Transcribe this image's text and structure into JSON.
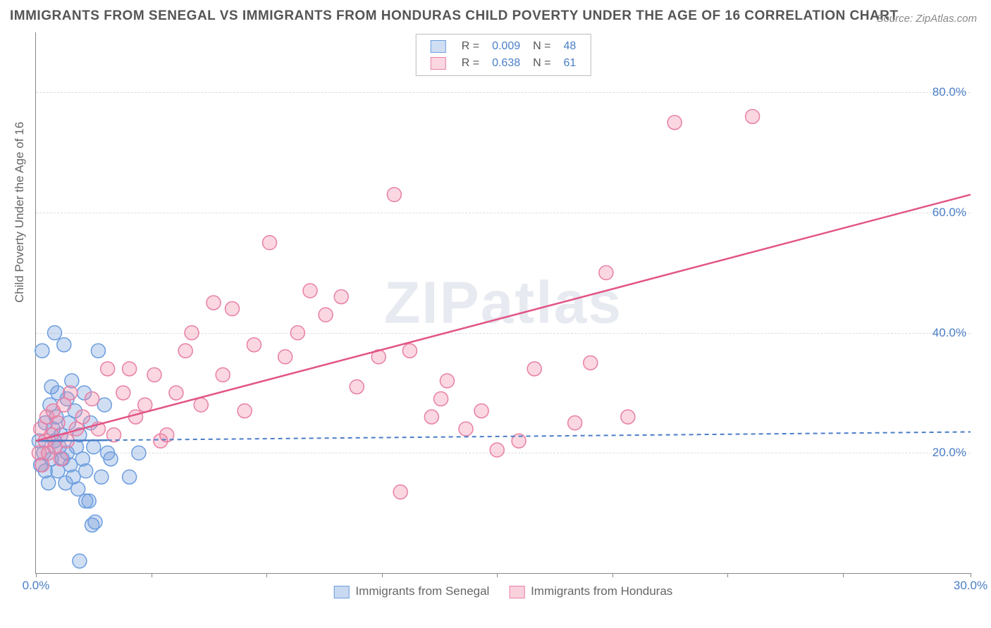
{
  "title": "IMMIGRANTS FROM SENEGAL VS IMMIGRANTS FROM HONDURAS CHILD POVERTY UNDER THE AGE OF 16 CORRELATION CHART",
  "source": "Source: ZipAtlas.com",
  "ylabel": "Child Poverty Under the Age of 16",
  "watermark": "ZIPatlas",
  "chart": {
    "type": "scatter",
    "xlim": [
      0,
      30
    ],
    "ylim": [
      0,
      90
    ],
    "ytick_positions": [
      20,
      40,
      60,
      80
    ],
    "ytick_labels": [
      "20.0%",
      "40.0%",
      "60.0%",
      "80.0%"
    ],
    "xtick_positions": [
      0,
      30
    ],
    "xtick_labels": [
      "0.0%",
      "30.0%"
    ],
    "xtick_marks": [
      0,
      3.7,
      7.4,
      11.1,
      14.8,
      18.5,
      22.2,
      25.9,
      30
    ],
    "background_color": "#ffffff",
    "grid_color": "#dddddd",
    "axis_color": "#888888",
    "tick_label_color": "#4a7ec7"
  },
  "series": [
    {
      "name": "Immigrants from Senegal",
      "fill": "rgba(120,160,220,0.35)",
      "stroke": "#6a9de0",
      "line_color": "#4a7ec7",
      "line_dash": "6,5",
      "R": "0.009",
      "N": "48",
      "trend": {
        "x1": 0,
        "y1": 22,
        "x2": 30,
        "y2": 23.5
      },
      "solid_until_x": 2.3,
      "marker_radius": 10,
      "points": [
        [
          0.1,
          22
        ],
        [
          0.15,
          18
        ],
        [
          0.2,
          37
        ],
        [
          0.25,
          20
        ],
        [
          0.3,
          25
        ],
        [
          0.3,
          17
        ],
        [
          0.4,
          15
        ],
        [
          0.45,
          28
        ],
        [
          0.5,
          31
        ],
        [
          0.5,
          19
        ],
        [
          0.55,
          24
        ],
        [
          0.6,
          22
        ],
        [
          0.6,
          40
        ],
        [
          0.65,
          26
        ],
        [
          0.7,
          30
        ],
        [
          0.7,
          17
        ],
        [
          0.75,
          21
        ],
        [
          0.8,
          23
        ],
        [
          0.85,
          19
        ],
        [
          0.9,
          38
        ],
        [
          0.95,
          15
        ],
        [
          1.0,
          29
        ],
        [
          1.0,
          20
        ],
        [
          1.05,
          25
        ],
        [
          1.1,
          18
        ],
        [
          1.15,
          32
        ],
        [
          1.2,
          16
        ],
        [
          1.25,
          27
        ],
        [
          1.3,
          21
        ],
        [
          1.35,
          14
        ],
        [
          1.4,
          23
        ],
        [
          1.5,
          19
        ],
        [
          1.55,
          30
        ],
        [
          1.6,
          17
        ],
        [
          1.7,
          12
        ],
        [
          1.75,
          25
        ],
        [
          1.8,
          8
        ],
        [
          1.85,
          21
        ],
        [
          1.9,
          8.5
        ],
        [
          2.0,
          37
        ],
        [
          2.1,
          16
        ],
        [
          2.2,
          28
        ],
        [
          1.4,
          2
        ],
        [
          1.6,
          12
        ],
        [
          2.3,
          20
        ],
        [
          2.4,
          19
        ],
        [
          3.0,
          16
        ],
        [
          3.3,
          20
        ]
      ]
    },
    {
      "name": "Immigrants from Honduras",
      "fill": "rgba(240,140,170,0.35)",
      "stroke": "#e87fa5",
      "line_color": "#e25586",
      "line_dash": "none",
      "R": "0.638",
      "N": "61",
      "trend": {
        "x1": 0,
        "y1": 22,
        "x2": 30,
        "y2": 63
      },
      "marker_radius": 10,
      "points": [
        [
          0.1,
          20
        ],
        [
          0.15,
          24
        ],
        [
          0.2,
          18
        ],
        [
          0.3,
          22
        ],
        [
          0.35,
          26
        ],
        [
          0.4,
          20
        ],
        [
          0.5,
          23
        ],
        [
          0.55,
          27
        ],
        [
          0.6,
          21
        ],
        [
          0.7,
          25
        ],
        [
          0.8,
          19
        ],
        [
          0.9,
          28
        ],
        [
          1.0,
          22
        ],
        [
          1.1,
          30
        ],
        [
          1.3,
          24
        ],
        [
          1.5,
          26
        ],
        [
          1.8,
          29
        ],
        [
          2.0,
          24
        ],
        [
          2.3,
          34
        ],
        [
          2.5,
          23
        ],
        [
          2.8,
          30
        ],
        [
          3.0,
          34
        ],
        [
          3.2,
          26
        ],
        [
          3.5,
          28
        ],
        [
          3.8,
          33
        ],
        [
          4.0,
          22
        ],
        [
          4.2,
          23
        ],
        [
          4.5,
          30
        ],
        [
          4.8,
          37
        ],
        [
          5.0,
          40
        ],
        [
          5.3,
          28
        ],
        [
          5.7,
          45
        ],
        [
          6.0,
          33
        ],
        [
          6.3,
          44
        ],
        [
          6.7,
          27
        ],
        [
          7.0,
          38
        ],
        [
          7.5,
          55
        ],
        [
          8.0,
          36
        ],
        [
          8.4,
          40
        ],
        [
          8.8,
          47
        ],
        [
          9.3,
          43
        ],
        [
          9.8,
          46
        ],
        [
          10.3,
          31
        ],
        [
          11.0,
          36
        ],
        [
          11.5,
          63
        ],
        [
          12.0,
          37
        ],
        [
          12.7,
          26
        ],
        [
          13.2,
          32
        ],
        [
          13.8,
          24
        ],
        [
          14.3,
          27
        ],
        [
          11.7,
          13.5
        ],
        [
          14.8,
          20.5
        ],
        [
          17.3,
          25
        ],
        [
          17.8,
          35
        ],
        [
          18.3,
          50
        ],
        [
          19.0,
          26
        ],
        [
          13.0,
          29
        ],
        [
          20.5,
          75
        ],
        [
          23.0,
          76
        ],
        [
          15.5,
          22
        ],
        [
          16.0,
          34
        ]
      ]
    }
  ],
  "legend_bottom": [
    {
      "label": "Immigrants from Senegal",
      "fill": "rgba(120,160,220,0.4)",
      "stroke": "#6a9de0"
    },
    {
      "label": "Immigrants from Honduras",
      "fill": "rgba(240,140,170,0.4)",
      "stroke": "#e87fa5"
    }
  ]
}
